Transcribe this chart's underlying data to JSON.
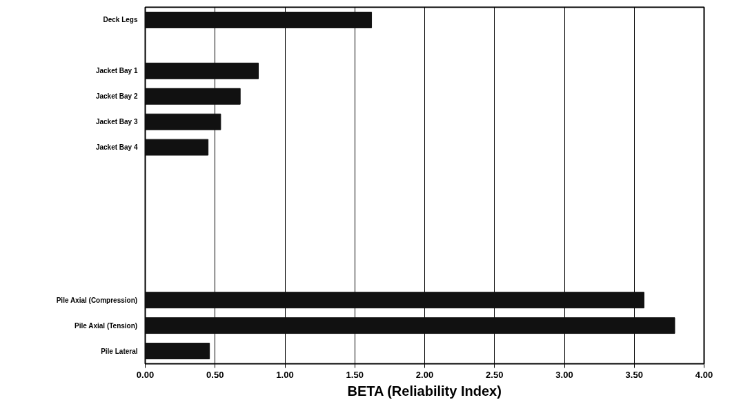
{
  "chart_data": {
    "type": "bar",
    "orientation": "horizontal",
    "xlabel": "BETA (Reliability Index)",
    "categories": [
      "Deck Legs",
      null,
      "Jacket Bay 1",
      "Jacket Bay 2",
      "Jacket Bay 3",
      "Jacket Bay 4",
      null,
      null,
      null,
      null,
      null,
      "Pile Axial (Compression)",
      "Pile Axial (Tension)",
      "Pile Lateral"
    ],
    "values": [
      1.62,
      null,
      0.81,
      0.68,
      0.54,
      0.45,
      null,
      null,
      null,
      null,
      null,
      3.57,
      3.79,
      0.46
    ],
    "color": "#111111",
    "xlim": [
      0,
      4
    ],
    "xticks": [
      {
        "value": 0,
        "label": "0.00"
      },
      {
        "value": 0.5,
        "label": "0.50"
      },
      {
        "value": 1,
        "label": "1.00"
      },
      {
        "value": 1.5,
        "label": "1.50"
      },
      {
        "value": 2,
        "label": "2.00"
      },
      {
        "value": 2.5,
        "label": "2.50"
      },
      {
        "value": 3,
        "label": "3.00"
      },
      {
        "value": 3.5,
        "label": "3.50"
      },
      {
        "value": 4,
        "label": "4.00"
      }
    ],
    "grid": "x"
  }
}
